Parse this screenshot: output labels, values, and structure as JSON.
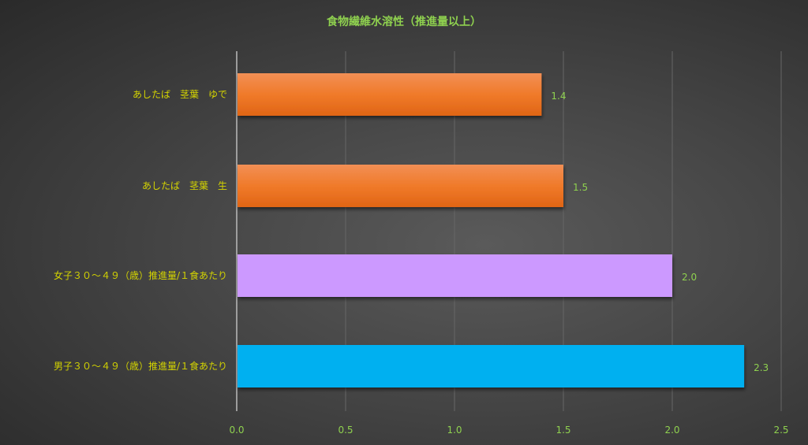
{
  "chart_data": {
    "type": "bar",
    "orientation": "horizontal",
    "title": "食物繊維水溶性（推進量以上）",
    "categories": [
      "あしたば　茎葉　ゆで",
      "あしたば　茎葉　生",
      "女子３０～４９（歳）推進量/１食あたり",
      "男子３０～４９（歳）推進量/１食あたり"
    ],
    "values": [
      1.4,
      1.5,
      2.0,
      2.33
    ],
    "data_labels": [
      "1.4",
      "1.5",
      "2.0",
      "2.3"
    ],
    "colors": [
      "#f07a2a",
      "#f07a2a",
      "#cc99ff",
      "#00b0f0"
    ],
    "xlim": [
      0,
      2.5
    ],
    "xticks": [
      "0.0",
      "0.5",
      "1.0",
      "1.5",
      "2.0",
      "2.5"
    ],
    "grid": true,
    "xlabel": "",
    "ylabel": ""
  }
}
